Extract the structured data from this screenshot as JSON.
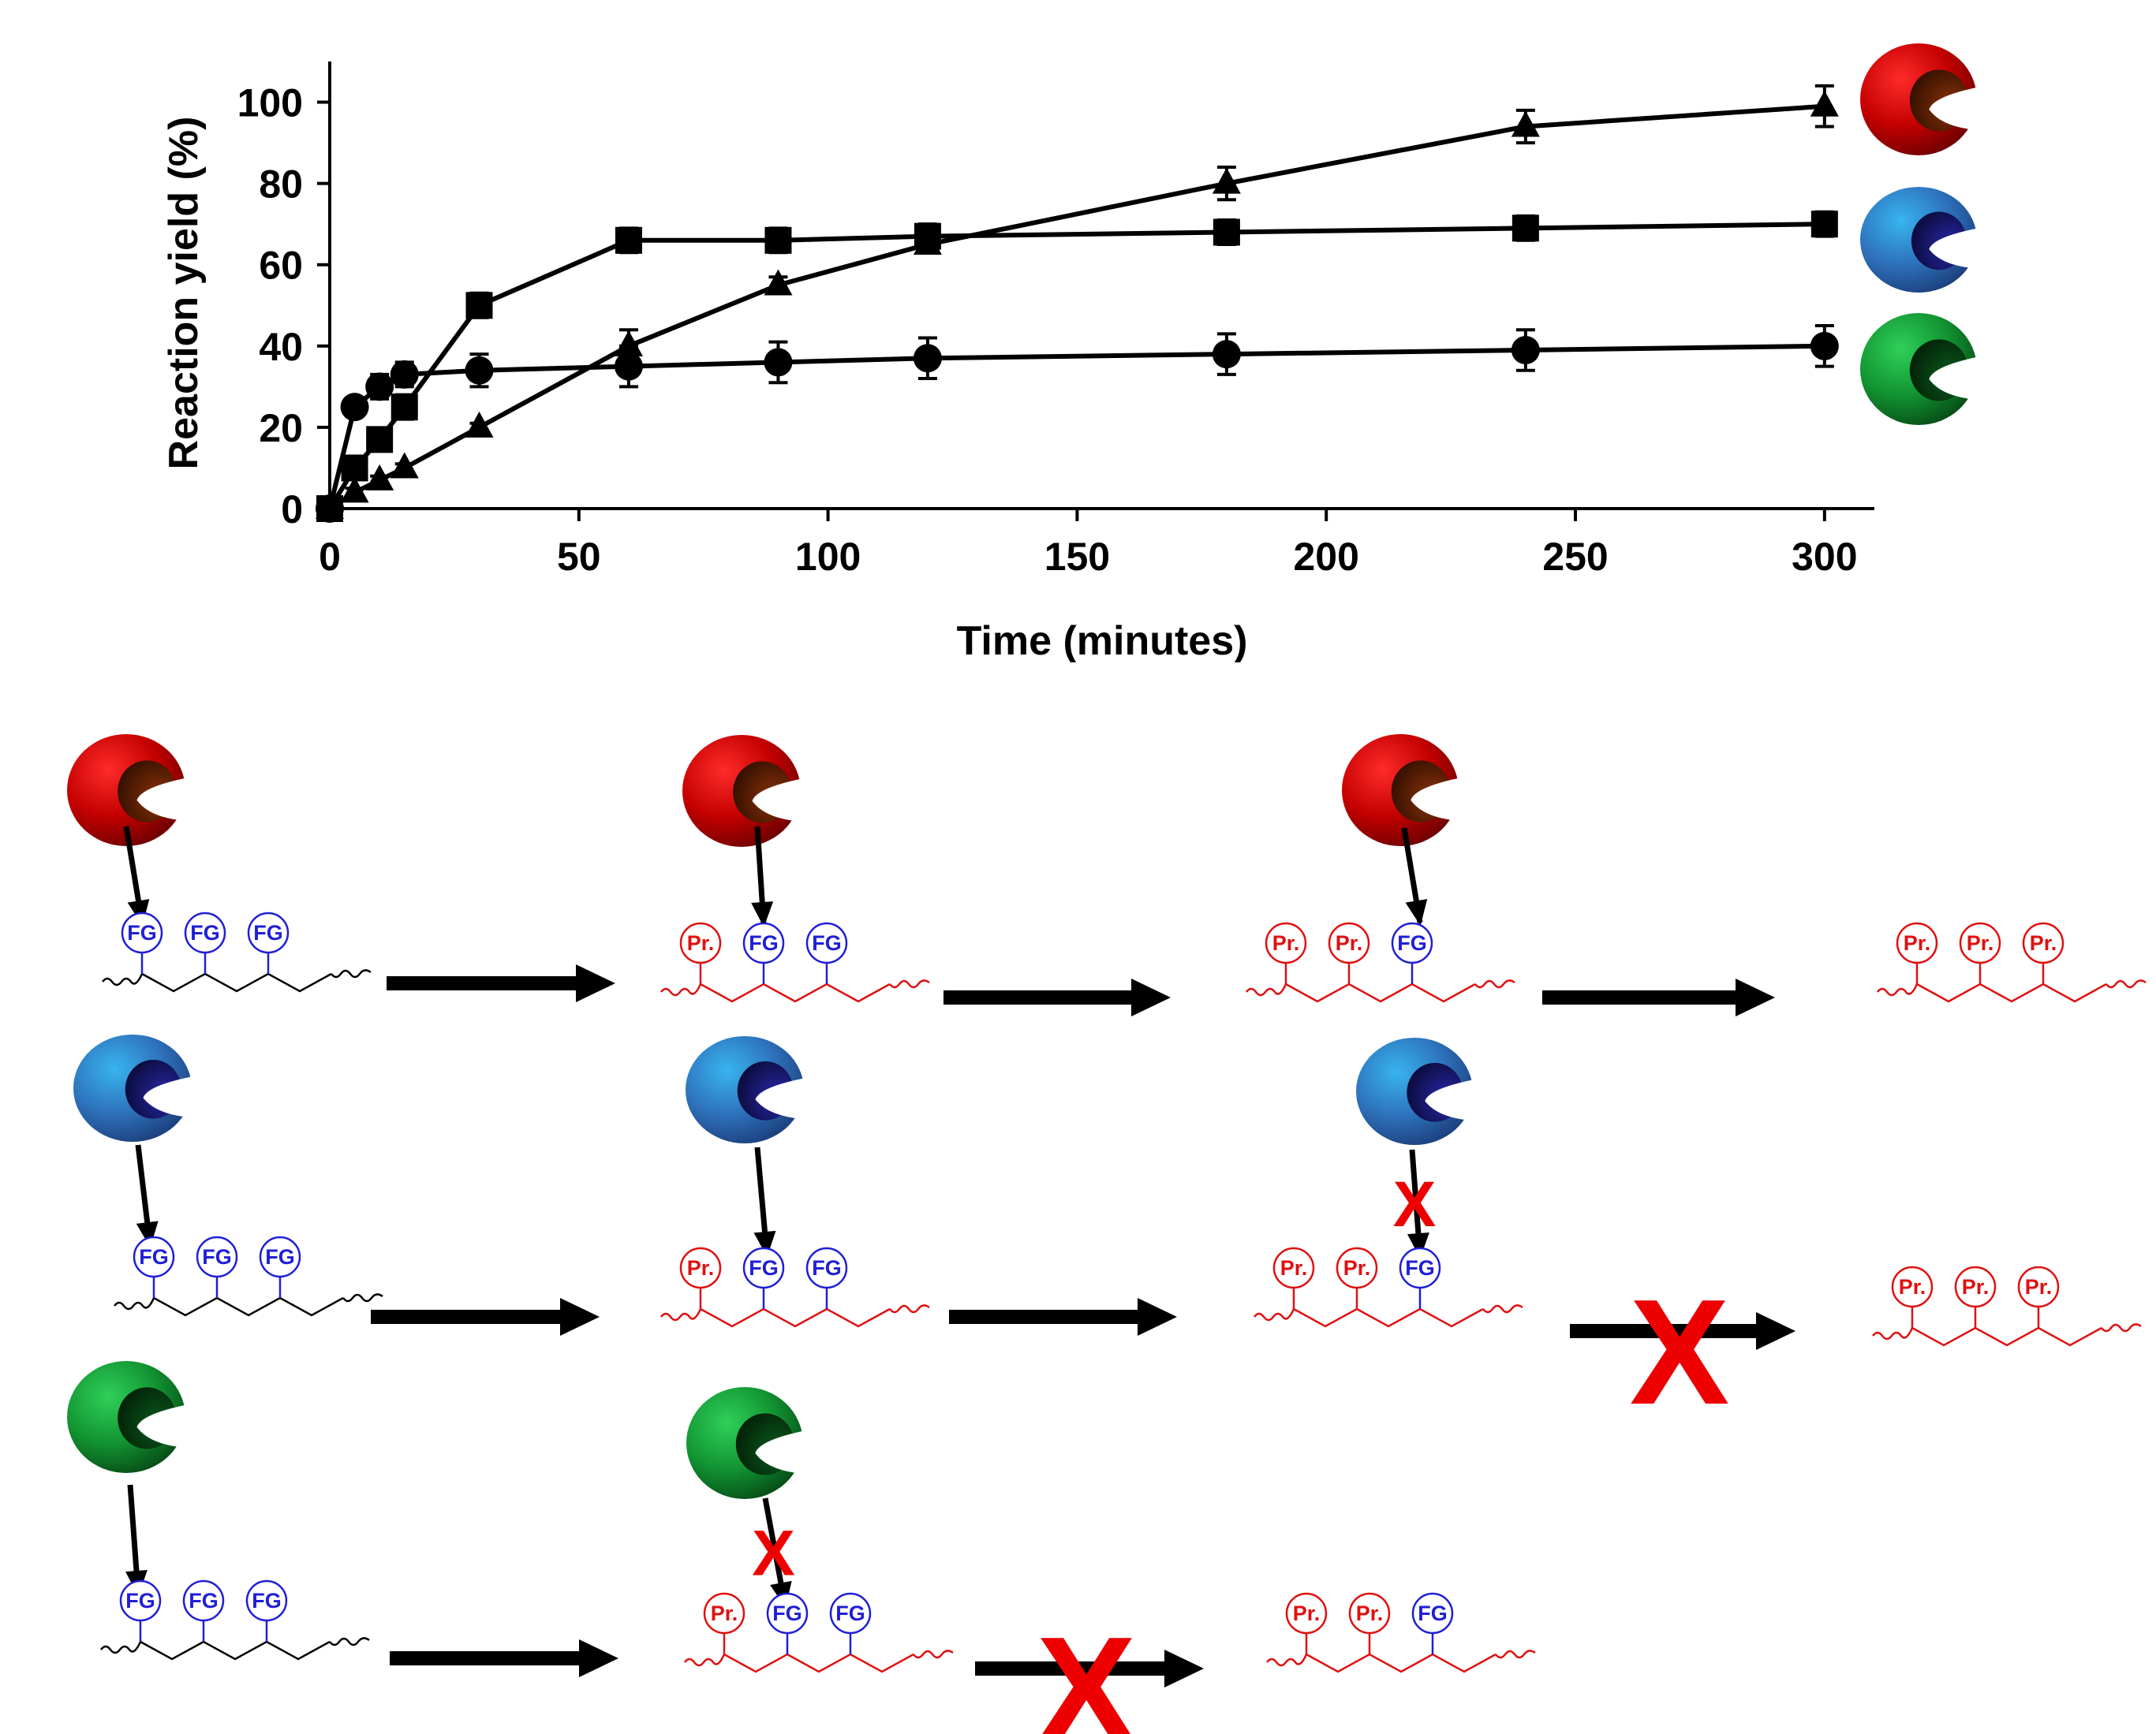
{
  "chart_data": {
    "type": "line",
    "title": "",
    "xlabel": "Time (minutes)",
    "ylabel": "Reaction yield (%)",
    "xlim": [
      0,
      310
    ],
    "ylim": [
      0,
      110
    ],
    "xticks": [
      0,
      50,
      100,
      150,
      200,
      250,
      300
    ],
    "yticks": [
      0,
      20,
      40,
      60,
      80,
      100
    ],
    "grid": false,
    "series": [
      {
        "name": "red enzyme",
        "marker": "triangle",
        "enzyme_color": "red",
        "x": [
          0,
          5,
          10,
          15,
          30,
          60,
          90,
          120,
          180,
          240,
          300
        ],
        "y": [
          0,
          4,
          7,
          10,
          20,
          40,
          55,
          65,
          80,
          94,
          99
        ],
        "err": [
          1,
          1,
          1,
          1,
          1,
          4,
          2,
          2,
          4,
          4,
          5
        ]
      },
      {
        "name": "blue enzyme",
        "marker": "square",
        "enzyme_color": "blue",
        "x": [
          0,
          5,
          10,
          15,
          30,
          60,
          90,
          120,
          180,
          240,
          300
        ],
        "y": [
          0,
          10,
          17,
          25,
          50,
          66,
          66,
          67,
          68,
          69,
          70
        ],
        "err": [
          1,
          2,
          2,
          3,
          3,
          3,
          3,
          3,
          3,
          3,
          3
        ]
      },
      {
        "name": "green enzyme",
        "marker": "circle",
        "enzyme_color": "green",
        "x": [
          0,
          5,
          10,
          15,
          30,
          60,
          90,
          120,
          180,
          240,
          300
        ],
        "y": [
          0,
          25,
          30,
          33,
          34,
          35,
          36,
          37,
          38,
          39,
          40
        ],
        "err": [
          1,
          2,
          3,
          3,
          4,
          5,
          5,
          5,
          5,
          5,
          5
        ]
      }
    ]
  },
  "scheme": {
    "labels": {
      "functional_group": "FG",
      "product": "Pr.",
      "blocked": "X"
    },
    "colors": {
      "functional_group": "#1f1fd6",
      "product": "#e01010",
      "block": "#ee0000",
      "arrow": "#000000"
    },
    "rows": [
      {
        "enzyme": "red",
        "polymers": [
          "FFF",
          "PFF",
          "PPF",
          "PPP"
        ],
        "blocked_steps": []
      },
      {
        "enzyme": "blue",
        "polymers": [
          "FFF",
          "PFF",
          "PPF",
          "PPP"
        ],
        "blocked_steps": [
          3
        ]
      },
      {
        "enzyme": "green",
        "polymers": [
          "FFF",
          "PFF",
          "PPF"
        ],
        "blocked_steps": [
          2
        ]
      }
    ]
  },
  "enzymes": {
    "red": {
      "light": "#ff2b2b",
      "mid": "#c40000",
      "dark": "#6a0000",
      "pocket": "#8a3208",
      "pocket_dark": "#2a0c00"
    },
    "blue": {
      "light": "#38b4ee",
      "mid": "#2e72bc",
      "dark": "#1b3d7a",
      "pocket": "#2828a8",
      "pocket_dark": "#080830"
    },
    "green": {
      "light": "#2fd05a",
      "mid": "#129432",
      "dark": "#064a16",
      "pocket": "#0b5b1c",
      "pocket_dark": "#021a06"
    }
  }
}
